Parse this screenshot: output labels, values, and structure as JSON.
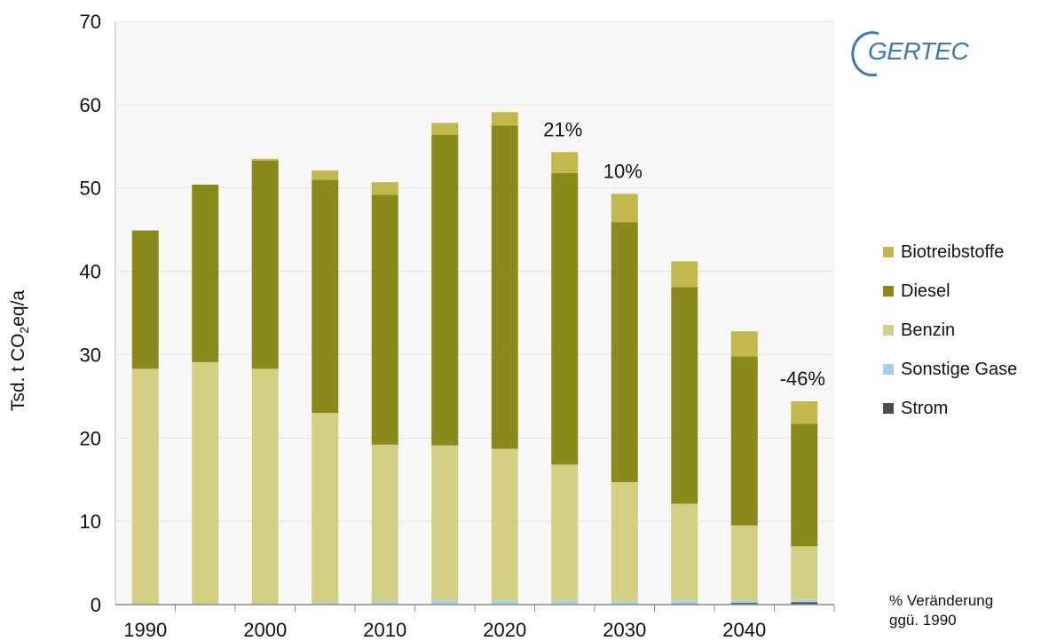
{
  "chart_data": {
    "type": "bar",
    "stacked": true,
    "ylabel_prefix": "Tsd. t CO",
    "ylabel_sub": "2",
    "ylabel_suffix": "eq/a",
    "ylim": [
      0,
      70
    ],
    "yticks": [
      0,
      10,
      20,
      30,
      40,
      50,
      60,
      70
    ],
    "xtick_labels": [
      "1990",
      "2000",
      "2010",
      "2020",
      "2030",
      "2040"
    ],
    "xtick_every": 2,
    "grid": "horizontal",
    "legend_position": "right",
    "categories": [
      "1990",
      "1995",
      "2000",
      "2005",
      "2010",
      "2015",
      "2020",
      "2025",
      "2030",
      "2035",
      "2040",
      "2045"
    ],
    "series": [
      {
        "name": "Strom",
        "color": "#4d4d4d",
        "values": [
          0,
          0,
          0,
          0,
          0,
          0,
          0,
          0,
          0,
          0.1,
          0.2,
          0.3
        ]
      },
      {
        "name": "Sonstige Gase",
        "color": "#a6d1e6",
        "values": [
          0,
          0.1,
          0.1,
          0.2,
          0.4,
          0.5,
          0.5,
          0.5,
          0.4,
          0.4,
          0.3,
          0.3
        ]
      },
      {
        "name": "Benzin",
        "color": "#d3d083",
        "values": [
          28.3,
          29.0,
          28.2,
          22.8,
          18.8,
          18.6,
          18.2,
          16.3,
          14.3,
          11.6,
          9.0,
          6.4
        ]
      },
      {
        "name": "Diesel",
        "color": "#8a8a1a",
        "values": [
          16.6,
          21.3,
          25.0,
          28.0,
          30.0,
          37.3,
          38.8,
          35.0,
          31.2,
          26.0,
          20.3,
          14.7
        ]
      },
      {
        "name": "Biotreibstoffe",
        "color": "#c2b84b",
        "values": [
          0,
          0,
          0.2,
          1.1,
          1.5,
          1.4,
          1.6,
          2.5,
          3.4,
          3.1,
          3.0,
          2.7
        ]
      }
    ],
    "annotations": [
      {
        "category": "2025",
        "text": "21%"
      },
      {
        "category": "2030",
        "text": "10%"
      },
      {
        "category": "2045",
        "text": "-46%"
      }
    ]
  },
  "legend": [
    {
      "label": "Biotreibstoffe",
      "color": "#c2b84b"
    },
    {
      "label": "Diesel",
      "color": "#8a8a1a"
    },
    {
      "label": "Benzin",
      "color": "#d3d083"
    },
    {
      "label": "Sonstige Gase",
      "color": "#a6d1e6"
    },
    {
      "label": "Strom",
      "color": "#4d4d4d"
    }
  ],
  "logo_text": "GERTEC",
  "note_line1": "% Veränderung",
  "note_line2": "ggü. 1990"
}
